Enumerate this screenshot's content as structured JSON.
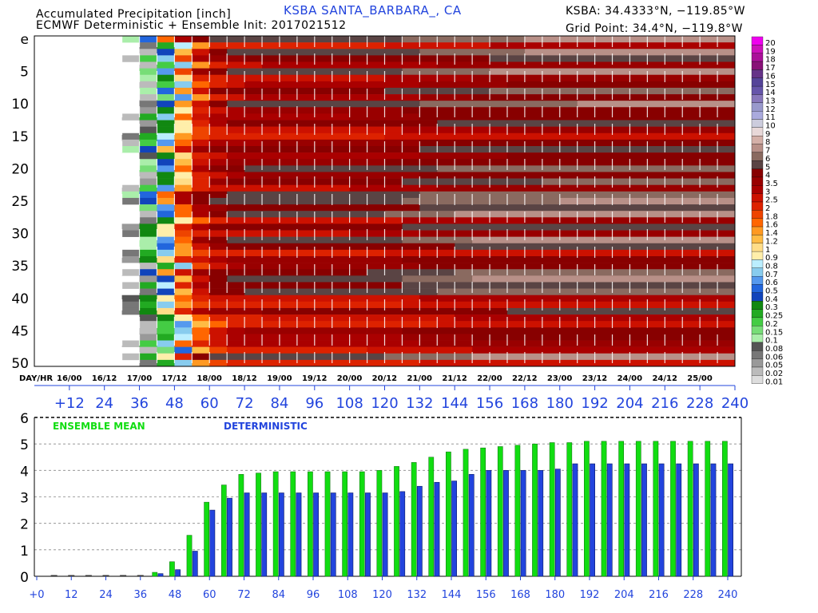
{
  "header": {
    "title": "Accumulated Precipitation [inch]",
    "subtitle": "ECMWF Deterministic + Ensemble Init: 2017021512",
    "station": "KSBA SANTA_BARBARA_, CA",
    "station_coords": "KSBA: 34.4333°N, −119.85°W",
    "grid_point": "Grid Point: 34.4°N, −119.8°W"
  },
  "colors": {
    "blue_text": "#2244dd",
    "ensemble_bar": "#11dd11",
    "deterministic_bar": "#2244dd",
    "deterministic_bar_dark": "#0a1a66"
  },
  "chart_data": [
    {
      "type": "heatmap",
      "y_ticks": [
        "e",
        "5",
        "10",
        "15",
        "20",
        "25",
        "30",
        "35",
        "40",
        "45",
        "50"
      ],
      "x_axis_title": "DAY/HR",
      "x_tick_labels": [
        "16/00",
        "16/12",
        "17/00",
        "17/12",
        "18/00",
        "18/12",
        "19/00",
        "19/12",
        "20/00",
        "20/12",
        "21/00",
        "21/12",
        "22/00",
        "22/12",
        "23/00",
        "23/12",
        "24/00",
        "24/12",
        "25/00"
      ],
      "forecast_hours_labels": [
        "+12",
        "24",
        "36",
        "48",
        "60",
        "72",
        "84",
        "96",
        "108",
        "120",
        "132",
        "144",
        "156",
        "168",
        "180",
        "192",
        "204",
        "216",
        "228",
        "240"
      ],
      "members": 51,
      "time_columns": 40,
      "colorbar_labels": [
        "20",
        "19",
        "18",
        "17",
        "16",
        "15",
        "14",
        "13",
        "12",
        "11",
        "10",
        "9",
        "8",
        "7",
        "6",
        "5",
        "4",
        "3.5",
        "3",
        "2.5",
        "2",
        "1.8",
        "1.6",
        "1.4",
        "1.2",
        "1",
        "0.9",
        "0.8",
        "0.7",
        "0.6",
        "0.5",
        "0.4",
        "0.3",
        "0.25",
        "0.2",
        "0.15",
        "0.1",
        "0.08",
        "0.06",
        "0.05",
        "0.02",
        "0.01"
      ],
      "colorbar_colors": [
        "#ee00ee",
        "#cc11bb",
        "#aa1199",
        "#881177",
        "#663388",
        "#554499",
        "#6655aa",
        "#8877bb",
        "#9999cc",
        "#aaaadd",
        "#ccccdd",
        "#e8d8d8",
        "#d4b0a8",
        "#b89088",
        "#8a6a60",
        "#5a4444",
        "#880000",
        "#990000",
        "#aa0000",
        "#cc1100",
        "#dd2200",
        "#ee4400",
        "#ff6600",
        "#ff9922",
        "#ffbb44",
        "#ffdd88",
        "#ffeeaa",
        "#bbeeff",
        "#88ccee",
        "#5599ee",
        "#2266dd",
        "#1144bb",
        "#118811",
        "#22aa22",
        "#44cc44",
        "#77dd77",
        "#aaeeaa",
        "#555555",
        "#777777",
        "#999999",
        "#bbbbbb",
        "#dddddd"
      ]
    },
    {
      "type": "bar",
      "legend": [
        "ENSEMBLE MEAN",
        "DETERMINISTIC"
      ],
      "ylim": [
        0,
        6
      ],
      "y_ticks": [
        "0",
        "1",
        "2",
        "3",
        "4",
        "5",
        "6"
      ],
      "x_ticks": [
        "+0",
        "12",
        "24",
        "36",
        "48",
        "60",
        "72",
        "84",
        "96",
        "108",
        "120",
        "132",
        "144",
        "156",
        "168",
        "180",
        "192",
        "204",
        "216",
        "228",
        "240"
      ],
      "hours": [
        0,
        6,
        12,
        18,
        24,
        30,
        36,
        42,
        48,
        54,
        60,
        66,
        72,
        78,
        84,
        90,
        96,
        102,
        108,
        114,
        120,
        126,
        132,
        138,
        144,
        150,
        156,
        162,
        168,
        174,
        180,
        186,
        192,
        198,
        204,
        210,
        216,
        222,
        228,
        234,
        240
      ],
      "series": [
        {
          "name": "ENSEMBLE MEAN",
          "values": [
            0,
            0,
            0,
            0,
            0,
            0,
            0,
            0.15,
            0.55,
            1.55,
            2.8,
            3.45,
            3.85,
            3.9,
            3.95,
            3.95,
            3.95,
            3.95,
            3.95,
            3.95,
            4.0,
            4.15,
            4.3,
            4.5,
            4.7,
            4.8,
            4.85,
            4.9,
            4.95,
            5.0,
            5.05,
            5.05,
            5.1,
            5.1,
            5.1,
            5.1,
            5.1,
            5.1,
            5.1,
            5.1,
            5.1
          ]
        },
        {
          "name": "DETERMINISTIC",
          "values": [
            0,
            0,
            0,
            0,
            0,
            0,
            0,
            0.1,
            0.25,
            0.95,
            2.5,
            2.95,
            3.15,
            3.15,
            3.15,
            3.15,
            3.15,
            3.15,
            3.15,
            3.15,
            3.15,
            3.2,
            3.4,
            3.55,
            3.6,
            3.85,
            4.0,
            4.0,
            4.0,
            4.0,
            4.05,
            4.25,
            4.25,
            4.25,
            4.25,
            4.25,
            4.25,
            4.25,
            4.25,
            4.25,
            4.25
          ]
        }
      ]
    }
  ]
}
